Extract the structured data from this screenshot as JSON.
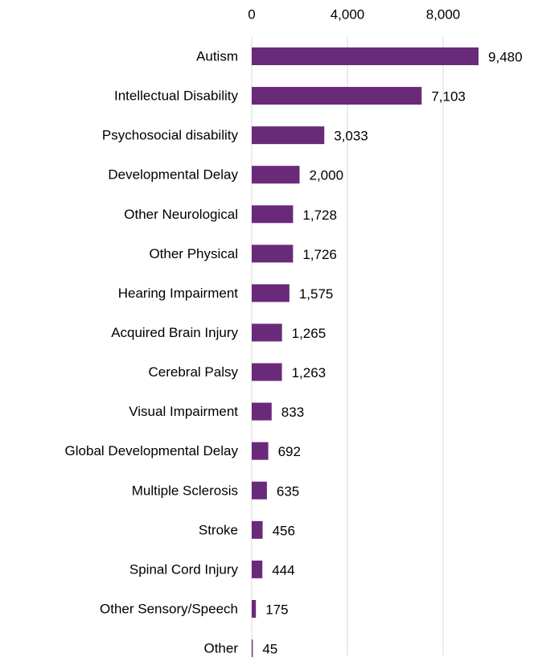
{
  "chart_data": {
    "type": "bar",
    "orientation": "horizontal",
    "categories": [
      "Autism",
      "Intellectual Disability",
      "Psychosocial disability",
      "Developmental Delay",
      "Other Neurological",
      "Other Physical",
      "Hearing Impairment",
      "Acquired Brain Injury",
      "Cerebral Palsy",
      "Visual Impairment",
      "Global Developmental Delay",
      "Multiple Sclerosis",
      "Stroke",
      "Spinal Cord Injury",
      "Other Sensory/Speech",
      "Other"
    ],
    "values": [
      9480,
      7103,
      3033,
      2000,
      1728,
      1726,
      1575,
      1265,
      1263,
      833,
      692,
      635,
      456,
      444,
      175,
      45
    ],
    "value_labels": [
      "9,480",
      "7,103",
      "3,033",
      "2,000",
      "1,728",
      "1,726",
      "1,575",
      "1,265",
      "1,263",
      "833",
      "692",
      "635",
      "456",
      "444",
      "175",
      "45"
    ],
    "color": "#6a2a7a",
    "xlim": [
      0,
      10000
    ],
    "xticks": [
      0,
      {
        "value": 4000,
        "label": "4,000"
      },
      {
        "value": 8000,
        "label": "8,000"
      }
    ],
    "grid": true
  }
}
